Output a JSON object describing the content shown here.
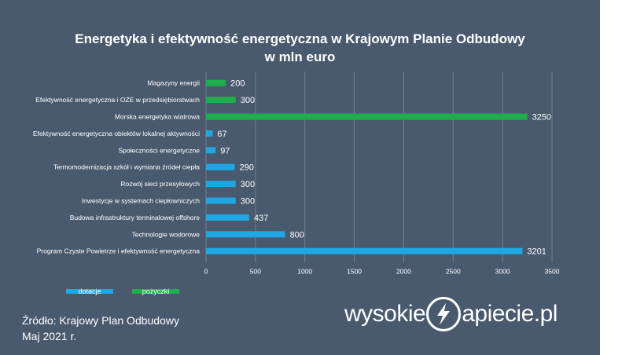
{
  "chart_data": {
    "type": "bar",
    "orientation": "horizontal",
    "title": "Energetyka i efektywność energetyczna w Krajowym Planie Odbudowy",
    "subtitle": "w mln euro",
    "categories": [
      "Magazyny energii",
      "Efektywność energetyczna i OZE w przedsiębiorstwach",
      "Morska energetyka wiatrowa",
      "Efektywność energetyczna obiektów lokalnej aktywności",
      "Społeczności energetyczne",
      "Termomodernizacja szkół i wymiana źródeł ciepła",
      "Rozwój sieci przesyłowych",
      "Inwestycje w systemach ciepłowniczych",
      "Budowa infrastruktury terminalowej offshore",
      "Technologie wodorowe",
      "Program Czyste Powietrze i efektywność energetyczna"
    ],
    "values": [
      200,
      300,
      3250,
      67,
      97,
      290,
      300,
      300,
      437,
      800,
      3201
    ],
    "value_labels": [
      "200",
      "300",
      "3250",
      "67",
      "97",
      "290",
      "300",
      "300",
      "437",
      "800",
      "3201"
    ],
    "series_type": [
      "pożyczki",
      "pożyczki",
      "pożyczki",
      "dotacje",
      "dotacje",
      "dotacje",
      "dotacje",
      "dotacje",
      "dotacje",
      "dotacje",
      "dotacje"
    ],
    "xlim": [
      0,
      3500
    ],
    "xticks": [
      "0",
      "500",
      "1000",
      "1500",
      "2000",
      "2500",
      "3000",
      "3500"
    ],
    "grid": true,
    "legend": [
      {
        "name": "dotacje",
        "color": "#1ea7e4"
      },
      {
        "name": "pożyczki",
        "color": "#1fae4e"
      }
    ],
    "legend_position": "bottom-left"
  },
  "colors": {
    "background": "#4a5a6e",
    "dotacje": "#1ea7e4",
    "pozyczki": "#1fae4e",
    "text": "#ffffff"
  },
  "source": {
    "line1": "Źródło: Krajowy Plan Odbudowy",
    "line2": "Maj 2021 r."
  },
  "logo": {
    "left": "wysokie",
    "right": "apiecie.pl"
  }
}
